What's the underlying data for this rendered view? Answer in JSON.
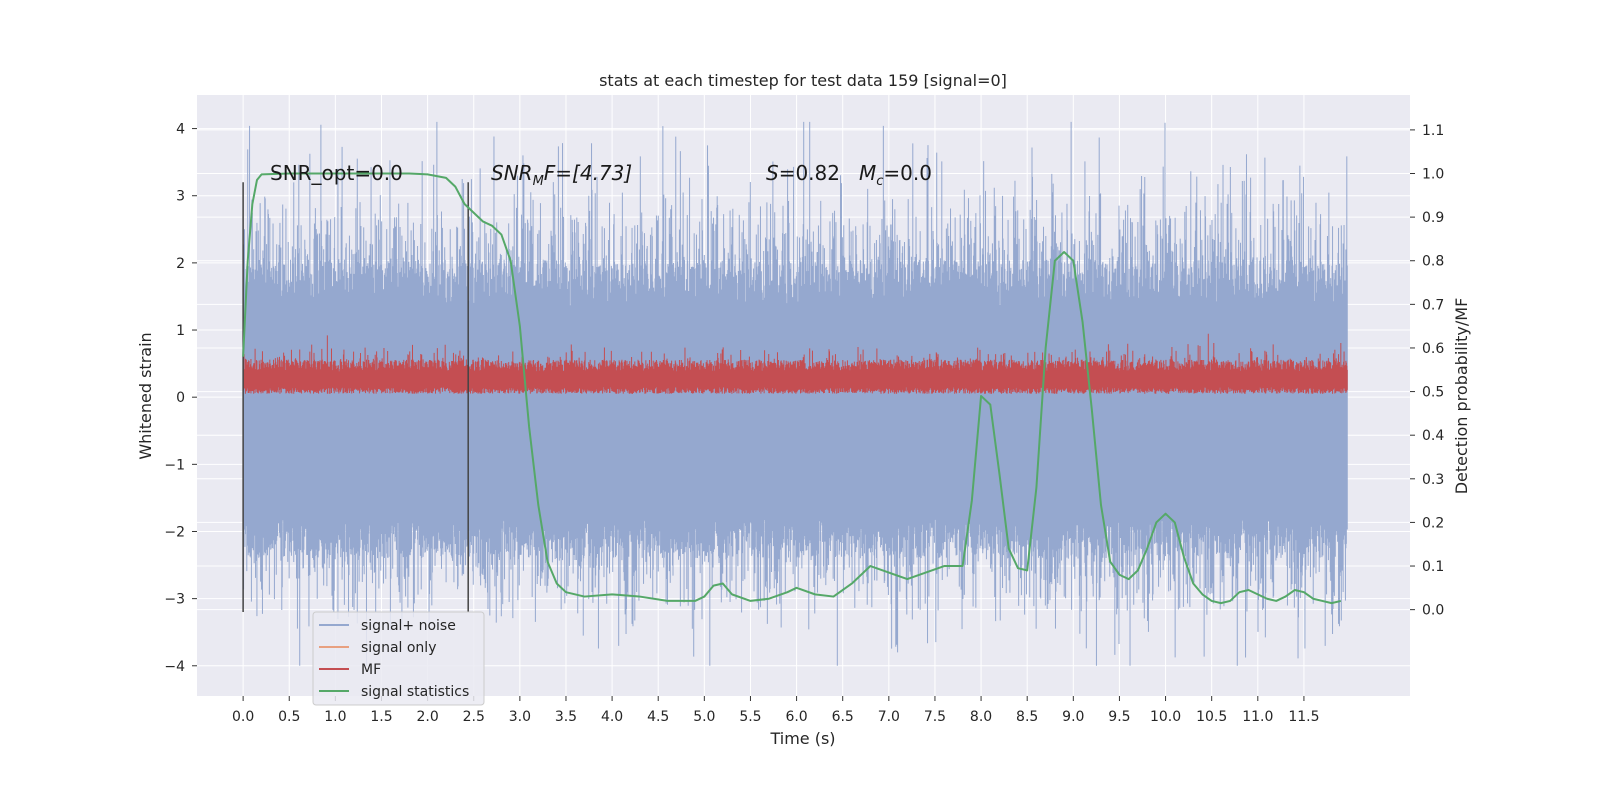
{
  "chart_data": {
    "type": "line",
    "title": "stats at each timestep for test data 159 [signal=0]",
    "xlabel": "Time (s)",
    "ylabel": "Whitened strain",
    "y2label": "Detection probability/MF",
    "xlim": [
      -0.5,
      12.65
    ],
    "ylim": [
      -4.45,
      4.5
    ],
    "y2lim": [
      -0.198,
      1.18
    ],
    "x_ticks": [
      "0.0",
      "0.5",
      "1.0",
      "1.5",
      "2.0",
      "2.5",
      "3.0",
      "3.5",
      "4.0",
      "4.5",
      "5.0",
      "5.5",
      "6.0",
      "6.5",
      "7.0",
      "7.5",
      "8.0",
      "8.5",
      "9.0",
      "9.5",
      "10.0",
      "10.5",
      "11.0",
      "11.5"
    ],
    "y_ticks": [
      "4",
      "3",
      "2",
      "1",
      "0",
      "−1",
      "−2",
      "−3",
      "−4"
    ],
    "y2_ticks": [
      "1.1",
      "1.0",
      "0.9",
      "0.8",
      "0.7",
      "0.6",
      "0.5",
      "0.4",
      "0.3",
      "0.2",
      "0.1",
      "0.0"
    ],
    "grid": true,
    "legend_placement": "lower-left",
    "annotations": {
      "snr_opt": "SNR_opt=0.0",
      "snr_mf_prefix": "SNR",
      "snr_mf_sub": "M",
      "snr_mf_suffix": "F=[4.73]",
      "s_var": "S",
      "s_val": "=0.82",
      "mc_var": "M",
      "mc_sub": "c",
      "mc_val": "=0.0"
    },
    "vertical_markers_x": [
      0.0,
      2.44
    ],
    "series": [
      {
        "name": "signal+ noise",
        "color": "#95a8cf",
        "note_range": [
          -4.0,
          4.1
        ]
      },
      {
        "name": "signal only",
        "color": "#e8a080",
        "values": []
      },
      {
        "name": "MF",
        "color": "#c44e52",
        "note_range": [
          0.05,
          0.7
        ]
      },
      {
        "name": "signal statistics",
        "color": "#55a868",
        "x": [
          0.0,
          0.05,
          0.1,
          0.15,
          0.2,
          0.5,
          1.0,
          1.5,
          1.8,
          2.0,
          2.2,
          2.3,
          2.4,
          2.5,
          2.6,
          2.7,
          2.8,
          2.9,
          3.0,
          3.1,
          3.2,
          3.3,
          3.4,
          3.5,
          3.7,
          4.0,
          4.3,
          4.6,
          4.9,
          5.0,
          5.1,
          5.2,
          5.3,
          5.5,
          5.7,
          5.9,
          6.0,
          6.2,
          6.4,
          6.6,
          6.8,
          7.0,
          7.2,
          7.4,
          7.6,
          7.8,
          7.9,
          8.0,
          8.1,
          8.2,
          8.3,
          8.4,
          8.5,
          8.6,
          8.7,
          8.8,
          8.9,
          9.0,
          9.1,
          9.2,
          9.3,
          9.4,
          9.5,
          9.6,
          9.7,
          9.8,
          9.9,
          10.0,
          10.1,
          10.2,
          10.3,
          10.4,
          10.5,
          10.6,
          10.7,
          10.8,
          10.9,
          11.0,
          11.1,
          11.2,
          11.3,
          11.4,
          11.5,
          11.6,
          11.7,
          11.8,
          11.9
        ],
        "values": [
          0.58,
          0.8,
          0.93,
          0.985,
          0.998,
          1.0,
          1.0,
          1.0,
          1.0,
          0.998,
          0.99,
          0.97,
          0.93,
          0.91,
          0.89,
          0.88,
          0.86,
          0.8,
          0.65,
          0.42,
          0.24,
          0.11,
          0.06,
          0.04,
          0.03,
          0.035,
          0.03,
          0.02,
          0.02,
          0.03,
          0.055,
          0.06,
          0.035,
          0.02,
          0.025,
          0.04,
          0.05,
          0.035,
          0.03,
          0.06,
          0.1,
          0.085,
          0.07,
          0.085,
          0.1,
          0.1,
          0.25,
          0.49,
          0.47,
          0.31,
          0.14,
          0.095,
          0.09,
          0.28,
          0.6,
          0.8,
          0.82,
          0.8,
          0.66,
          0.46,
          0.24,
          0.11,
          0.08,
          0.07,
          0.09,
          0.14,
          0.2,
          0.22,
          0.2,
          0.12,
          0.06,
          0.035,
          0.02,
          0.015,
          0.02,
          0.04,
          0.045,
          0.035,
          0.025,
          0.02,
          0.03,
          0.045,
          0.04,
          0.025,
          0.02,
          0.015,
          0.02
        ]
      }
    ]
  }
}
